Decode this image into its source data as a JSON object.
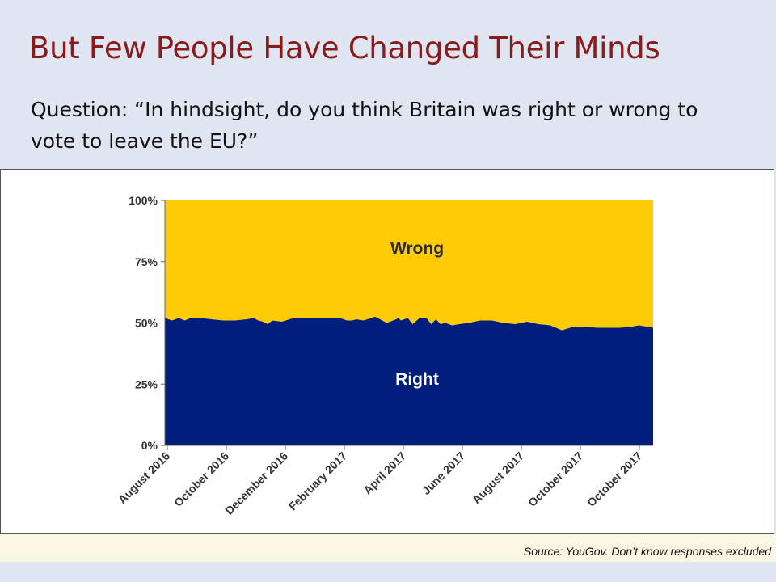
{
  "slide": {
    "title": "But Few People Have Changed Their Minds",
    "question": "Question: “In hindsight, do you think Britain was right or wrong to vote to leave the EU?”"
  },
  "source_note": "Source: YouGov. Don’t know responses excluded",
  "colors": {
    "title": "#8b1a1a",
    "right": "#001f7d",
    "wrong": "#ffcb05"
  },
  "chart_data": {
    "type": "area",
    "stacked": true,
    "ylim": [
      0,
      100
    ],
    "y_ticks": [
      "0%",
      "25%",
      "50%",
      "75%",
      "100%"
    ],
    "x_ticks": [
      "August 2016",
      "October 2016",
      "December 2016",
      "February 2017",
      "April 2017",
      "June 2017",
      "August 2017",
      "October 2017",
      "October 2017"
    ],
    "grid": false,
    "area_labels": {
      "right": "Right",
      "wrong": "Wrong"
    },
    "x": [
      0,
      0.3,
      0.6,
      0.85,
      1.1,
      1.5,
      2,
      2.5,
      3,
      3.5,
      3.8,
      4,
      4.2,
      4.4,
      4.6,
      5,
      5.5,
      6,
      6.5,
      7,
      7.5,
      7.8,
      8,
      8.2,
      8.5,
      9,
      9.5,
      9.9,
      10.0,
      10.1,
      10.4,
      10.6,
      10.9,
      11.2,
      11.4,
      11.6,
      11.8,
      12.0,
      12.3,
      12.6,
      13,
      13.5,
      14,
      14.5,
      15,
      15.5,
      16,
      16.5,
      17,
      17.5,
      18,
      18.5,
      19,
      19.5,
      20,
      20.3,
      20.6,
      20.9
    ],
    "series": [
      {
        "name": "Right",
        "values": [
          52,
          51,
          52,
          51,
          52,
          52,
          51.5,
          51,
          51,
          51.5,
          52,
          51,
          50.5,
          49.5,
          51,
          50.5,
          52,
          52,
          52,
          52,
          52,
          51,
          51,
          51.5,
          51,
          52.5,
          50,
          51.5,
          52,
          51,
          52,
          49.5,
          52,
          52,
          49.5,
          51.5,
          49.5,
          50,
          49,
          49.5,
          50,
          51,
          51,
          50,
          49.5,
          50.5,
          49.5,
          49,
          47,
          48.5,
          48.5,
          48,
          48,
          48,
          48.5,
          49,
          48.5,
          48
        ]
      },
      {
        "name": "Wrong",
        "values": [
          48,
          49,
          48,
          49,
          48,
          48,
          48.5,
          49,
          49,
          48.5,
          48,
          49,
          49.5,
          50.5,
          49,
          49.5,
          48,
          48,
          48,
          48,
          48,
          49,
          49,
          48.5,
          49,
          47.5,
          50,
          48.5,
          48,
          49,
          48,
          50.5,
          48,
          48,
          50.5,
          48.5,
          50.5,
          50,
          51,
          50.5,
          50,
          49,
          49,
          50,
          50.5,
          49.5,
          50.5,
          51,
          53,
          51.5,
          51.5,
          52,
          52,
          52,
          51.5,
          51,
          51.5,
          52
        ]
      }
    ]
  }
}
